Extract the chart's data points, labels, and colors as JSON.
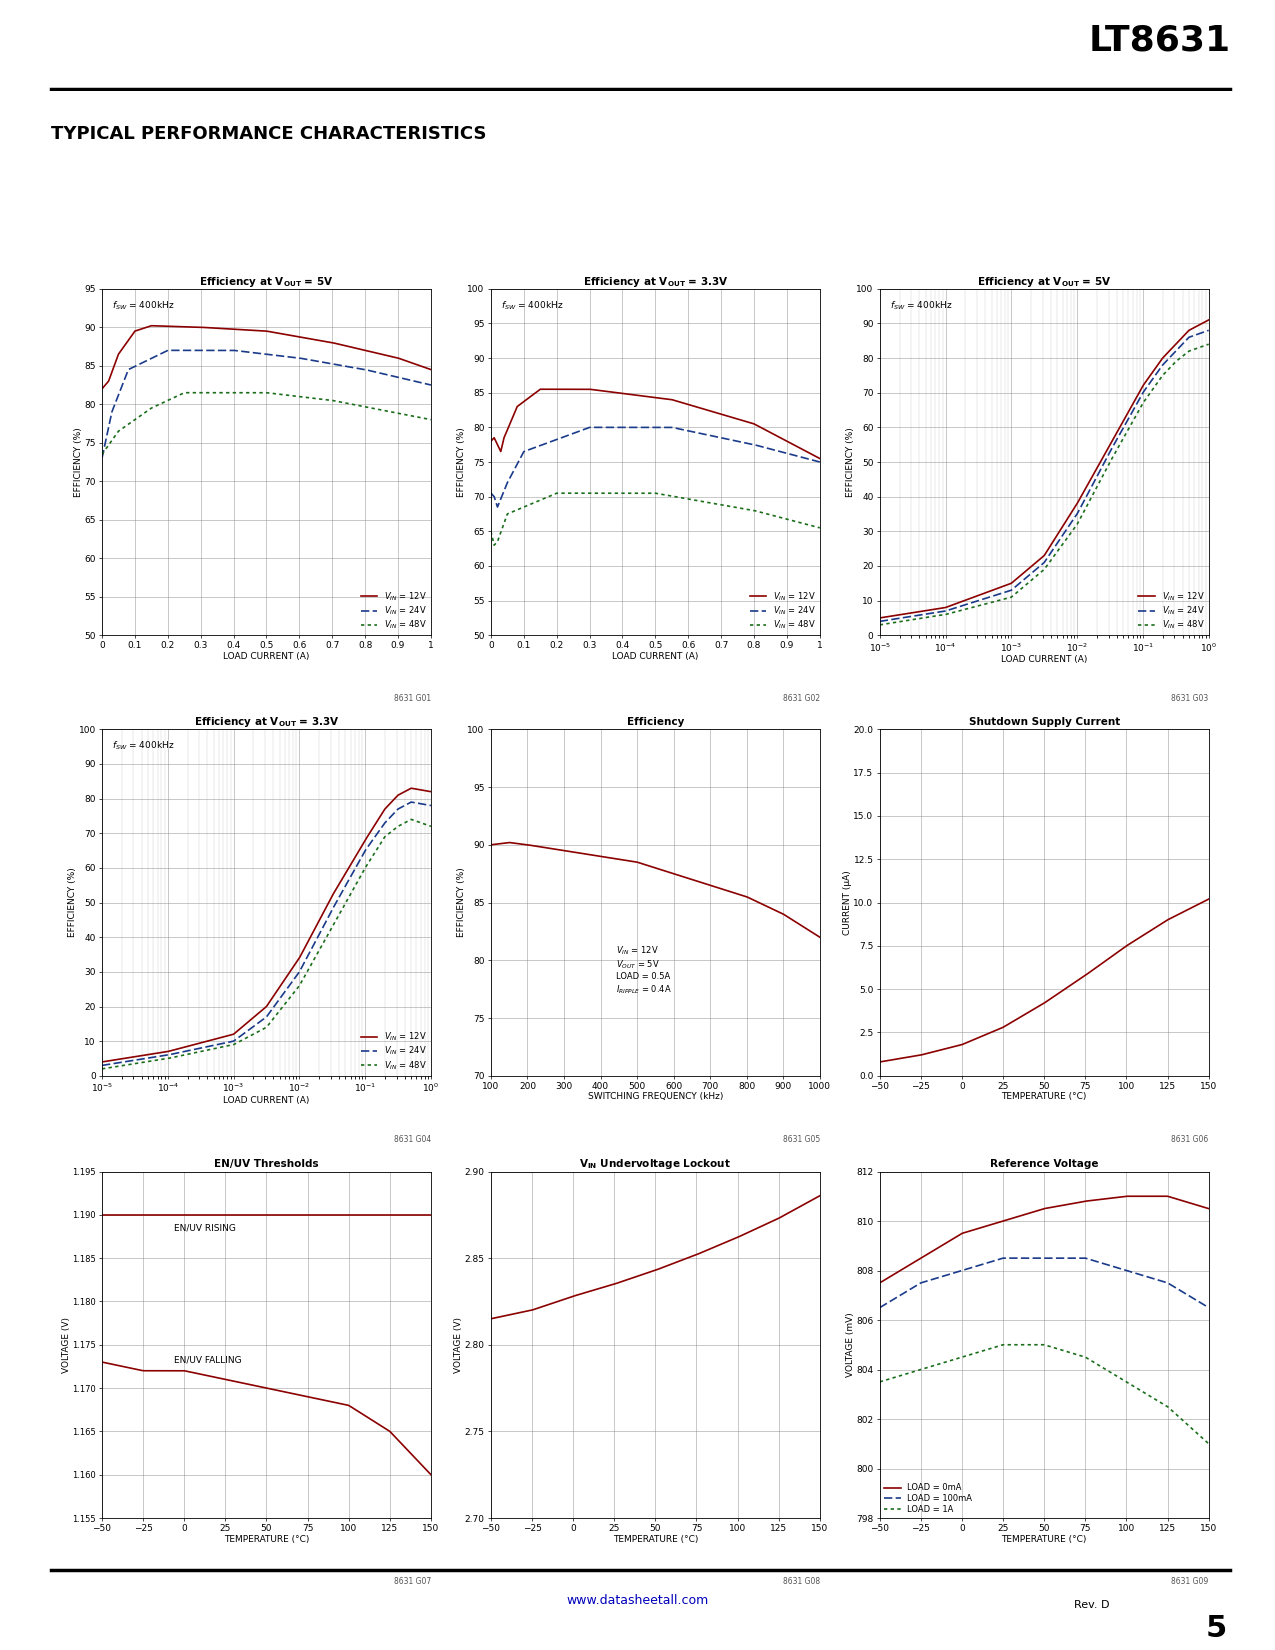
{
  "page_title": "LT8631",
  "section_title": "TYPICAL PERFORMANCE CHARACTERISTICS",
  "background_color": "#ffffff",
  "text_color": "#000000",
  "colors": {
    "red": "#8B0000",
    "blue": "#1a3a8a",
    "green": "#1a6e1a"
  },
  "chart1": {
    "title_pre": "Efficiency at V",
    "title_sub": "OUT",
    "title_post": " = 5V",
    "annotation": "fSW = 400kHz",
    "xlabel": "LOAD CURRENT (A)",
    "ylabel": "EFFICIENCY (%)",
    "xlim": [
      0,
      1
    ],
    "ylim": [
      50,
      95
    ],
    "yticks": [
      50,
      55,
      60,
      65,
      70,
      75,
      80,
      85,
      90,
      95
    ],
    "xticks": [
      0,
      0.1,
      0.2,
      0.3,
      0.4,
      0.5,
      0.6,
      0.7,
      0.8,
      0.9,
      1
    ],
    "xticklabels": [
      "0",
      "0.1",
      "0.2",
      "0.3",
      "0.4",
      "0.5",
      "0.6",
      "0.7",
      "0.8",
      "0.9",
      "1"
    ],
    "legend": [
      "VIN = 12V",
      "VIN = 24V",
      "VIN = 48V"
    ],
    "code": "8631 G01"
  },
  "chart2": {
    "title_pre": "Efficiency at V",
    "title_sub": "OUT",
    "title_post": " = 3.3V",
    "annotation": "fSW = 400kHz",
    "xlabel": "LOAD CURRENT (A)",
    "ylabel": "EFFICIENCY (%)",
    "xlim": [
      0,
      1
    ],
    "ylim": [
      50,
      100
    ],
    "yticks": [
      50,
      55,
      60,
      65,
      70,
      75,
      80,
      85,
      90,
      95,
      100
    ],
    "xticks": [
      0,
      0.1,
      0.2,
      0.3,
      0.4,
      0.5,
      0.6,
      0.7,
      0.8,
      0.9,
      1
    ],
    "xticklabels": [
      "0",
      "0.1",
      "0.2",
      "0.3",
      "0.4",
      "0.5",
      "0.6",
      "0.7",
      "0.8",
      "0.9",
      "1"
    ],
    "legend": [
      "VIN = 12V",
      "VIN = 24V",
      "VIN = 48V"
    ],
    "code": "8631 G02"
  },
  "chart3": {
    "title_pre": "Efficiency at V",
    "title_sub": "OUT",
    "title_post": " = 5V",
    "annotation": "fSW = 400kHz",
    "xlabel": "LOAD CURRENT (A)",
    "ylabel": "EFFICIENCY (%)",
    "xlim_log": [
      -5,
      0
    ],
    "ylim": [
      0,
      100
    ],
    "yticks": [
      0,
      10,
      20,
      30,
      40,
      50,
      60,
      70,
      80,
      90,
      100
    ],
    "legend": [
      "VIN = 12V",
      "VIN = 24V",
      "VIN = 48V"
    ],
    "code": "8631 G03"
  },
  "chart4": {
    "title_pre": "Efficiency at V",
    "title_sub": "OUT",
    "title_post": " = 3.3V",
    "annotation": "fSW = 400kHz",
    "xlabel": "LOAD CURRENT (A)",
    "ylabel": "EFFICIENCY (%)",
    "xlim_log": [
      -5,
      0
    ],
    "ylim": [
      0,
      100
    ],
    "yticks": [
      0,
      10,
      20,
      30,
      40,
      50,
      60,
      70,
      80,
      90,
      100
    ],
    "legend": [
      "VIN = 12V",
      "VIN = 24V",
      "VIN = 48V"
    ],
    "code": "8631 G04"
  },
  "chart5": {
    "title": "Efficiency",
    "xlabel": "SWITCHING FREQUENCY (kHz)",
    "ylabel": "EFFICIENCY (%)",
    "xlim": [
      100,
      1000
    ],
    "ylim": [
      70,
      100
    ],
    "yticks": [
      70,
      75,
      80,
      85,
      90,
      95,
      100
    ],
    "xticks": [
      100,
      200,
      300,
      400,
      500,
      600,
      700,
      800,
      900,
      1000
    ],
    "xticklabels": [
      "100",
      "200",
      "300",
      "400",
      "500",
      "600",
      "700",
      "800",
      "900",
      "1000"
    ],
    "code": "8631 G05"
  },
  "chart6": {
    "title": "Shutdown Supply Current",
    "xlabel": "TEMPERATURE (°C)",
    "ylabel": "CURRENT (μA)",
    "xlim": [
      -50,
      150
    ],
    "ylim": [
      0,
      20.0
    ],
    "yticks": [
      0,
      2.5,
      5.0,
      7.5,
      10.0,
      12.5,
      15.0,
      17.5,
      20.0
    ],
    "xticks": [
      -50,
      -25,
      0,
      25,
      50,
      75,
      100,
      125,
      150
    ],
    "code": "8631 G06"
  },
  "chart7": {
    "title": "EN/UV Thresholds",
    "xlabel": "TEMPERATURE (°C)",
    "ylabel": "VOLTAGE (V)",
    "xlim": [
      -50,
      150
    ],
    "ylim": [
      1.155,
      1.195
    ],
    "yticks": [
      1.155,
      1.16,
      1.165,
      1.17,
      1.175,
      1.18,
      1.185,
      1.19,
      1.195
    ],
    "xticks": [
      -50,
      -25,
      0,
      25,
      50,
      75,
      100,
      125,
      150
    ],
    "code": "8631 G07"
  },
  "chart8": {
    "title_pre": "V",
    "title_sub": "IN",
    "title_post": " Undervoltage Lockout",
    "xlabel": "TEMPERATURE (°C)",
    "ylabel": "VOLTAGE (V)",
    "xlim": [
      -50,
      150
    ],
    "ylim": [
      2.7,
      2.9
    ],
    "yticks": [
      2.7,
      2.75,
      2.8,
      2.85,
      2.9
    ],
    "xticks": [
      -50,
      -25,
      0,
      25,
      50,
      75,
      100,
      125,
      150
    ],
    "code": "8631 G08"
  },
  "chart9": {
    "title": "Reference Voltage",
    "xlabel": "TEMPERATURE (°C)",
    "ylabel": "VOLTAGE (mV)",
    "xlim": [
      -50,
      150
    ],
    "ylim": [
      798,
      812
    ],
    "yticks": [
      798,
      800,
      802,
      804,
      806,
      808,
      810,
      812
    ],
    "xticks": [
      -50,
      -25,
      0,
      25,
      50,
      75,
      100,
      125,
      150
    ],
    "legend": [
      "LOAD = 0mA",
      "LOAD = 100mA",
      "LOAD = 1A"
    ],
    "code": "8631 G09"
  },
  "footer_url": "www.datasheetall.com",
  "footer_page": "5",
  "footer_rev": "Rev. D"
}
